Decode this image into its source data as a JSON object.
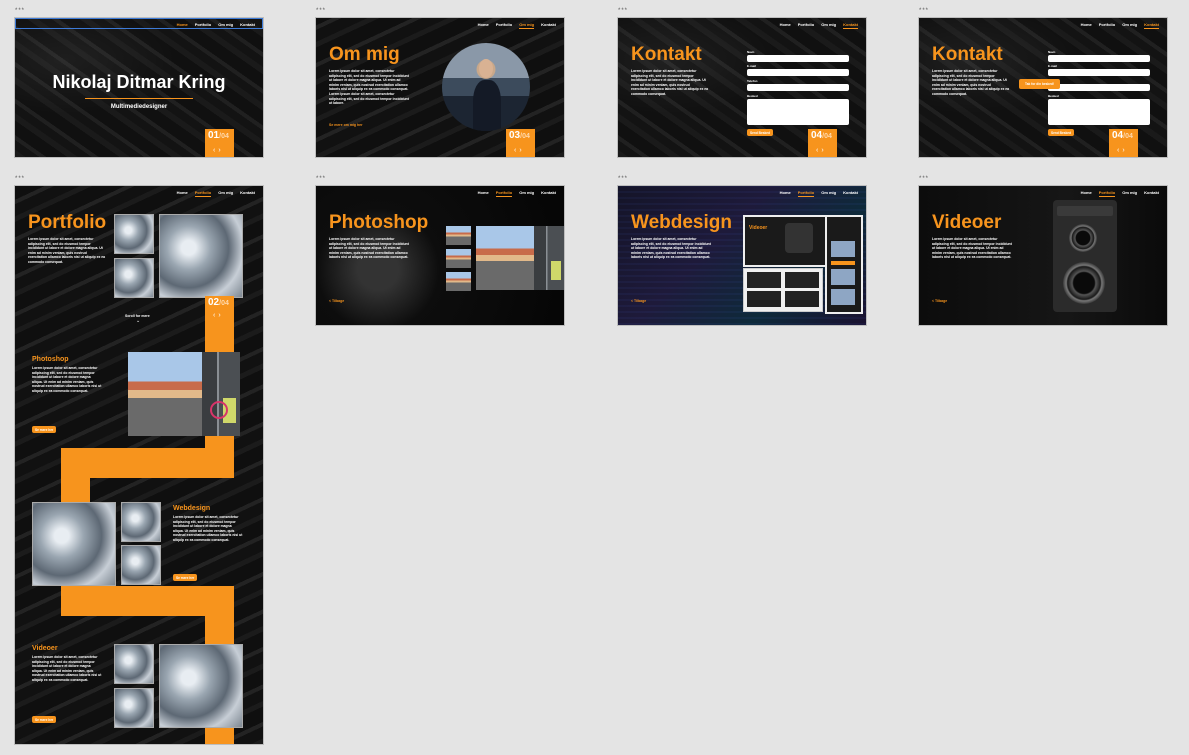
{
  "artboard_label": "***",
  "nav": {
    "home": "Home",
    "portfolio": "Portfolio",
    "om_mig": "Om mig",
    "kontakt": "Kontakt"
  },
  "hero": {
    "name": "Nikolaj Ditmar Kring",
    "subtitle": "Multimediedesigner",
    "page": "01",
    "total": "/04"
  },
  "about": {
    "title": "Om mig",
    "lorem": "Lorem ipsum dolor sit amet, consectetur adipiscing elit, sed do eiusmod tempor incididunt ut labore et dolore magna aliqua. Ut enim ad minim veniam, quis nostrud exercitation ullamco laboris nisi ut aliquip ex ea commodo consequat. Lorem ipsum dolor sit amet, consectetur adipiscing elit, sed do eiusmod tempor incididunt ut labore.",
    "link": "Se mere om mig her",
    "page": "03",
    "total": "/04"
  },
  "contact": {
    "title": "Kontakt",
    "lorem": "Lorem ipsum dolor sit amet, consectetur adipiscing elit, sed do eiusmod tempor incididunt ut labore et dolore magna aliqua. Ut enim ad minim veniam, quis nostrud exercitation ullamco laboris nisi ut aliquip ex ea commodo consequat.",
    "name_label": "Navn",
    "email_label": "E-mail",
    "phone_label": "Telefon",
    "message_label": "Besked",
    "send": "Send Besked",
    "thanks": "Tak for din besked!",
    "page": "04",
    "total": "/04"
  },
  "portfolio": {
    "title": "Portfolio",
    "lorem": "Lorem ipsum dolor sit amet, consectetur adipiscing elit, sed do eiusmod tempor incididunt ut labore et dolore magna aliqua. Ut enim ad minim veniam, quis nostrud exercitation ullamco laboris nisi ut aliquip ex ea commodo consequat.",
    "scroll": "Scroll for mere",
    "page": "02",
    "total": "/04",
    "photoshop": "Photoshop",
    "webdesign": "Webdesign",
    "videoer": "Videoer",
    "se_mere": "Se mere her"
  },
  "photoshop": {
    "title": "Photoshop",
    "lorem": "Lorem ipsum dolor sit amet, consectetur adipiscing elit, sed do eiusmod tempor incididunt ut labore et dolore magna aliqua. Ut enim ad minim veniam, quis nostrud exercitation ullamco laboris nisi ut aliquip ex ea commodo consequat.",
    "back": "< Tilbage"
  },
  "webdesign": {
    "title": "Webdesign",
    "lorem": "Lorem ipsum dolor sit amet, consectetur adipiscing elit, sed do eiusmod tempor incididunt ut labore et dolore magna aliqua. Ut enim ad minim veniam, quis nostrud exercitation ullamco laboris nisi ut aliquip ex ea commodo consequat.",
    "back": "< Tilbage",
    "mock_title": "Videoer"
  },
  "videoer": {
    "title": "Videoer",
    "lorem": "Lorem ipsum dolor sit amet, consectetur adipiscing elit, sed do eiusmod tempor incididunt ut labore et dolore magna aliqua. Ut enim ad minim veniam, quis nostrud exercitation ullamco laboris nisi ut aliquip ex ea commodo consequat.",
    "back": "< Tilbage"
  },
  "colors": {
    "accent": "#f7941d",
    "canvas": "#e4e4e4",
    "board": "#111111"
  }
}
